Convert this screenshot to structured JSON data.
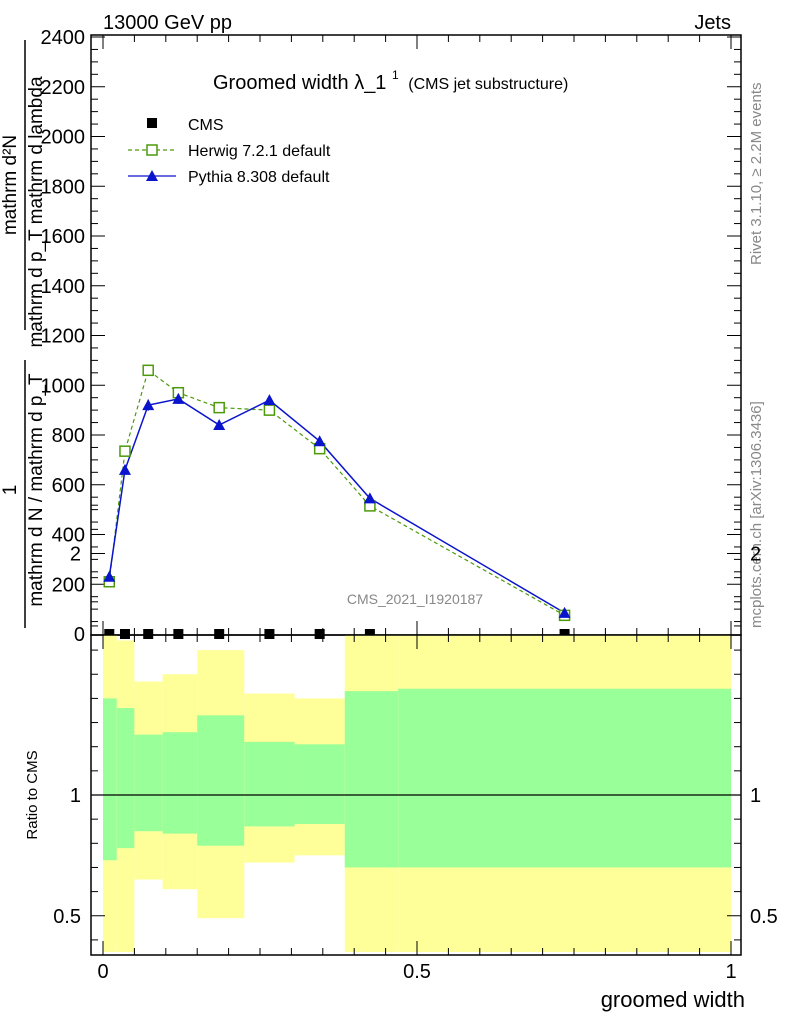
{
  "header": {
    "energy": "13000 GeV pp",
    "category": "Jets",
    "rivet": "Rivet 3.1.10, ≥ 2.2M events",
    "mcplots": "mcplots.cern.ch [arXiv:1306.3436]",
    "analysis_id": "CMS_2021_I1920187"
  },
  "chart_data": [
    {
      "type": "line",
      "title_main": "Groomed width",
      "title_sym": "λ_1",
      "title_sup": "1",
      "title_sub": "(CMS jet substructure)",
      "ylabel_top": "mathrm d²N",
      "ylabel_top2": "mathrm d p_T mathrm d lambda",
      "ylabel_one": "1",
      "ylabel_bottom": "mathrm d N / mathrm d p_T",
      "xlim": [
        0,
        1
      ],
      "ylim": [
        0,
        2400
      ],
      "yticks": [
        200,
        400,
        600,
        800,
        1000,
        1200,
        1400,
        1600,
        1800,
        2000,
        2200,
        2400
      ],
      "ytick_labels": [
        "200",
        "400",
        "600",
        "800",
        "1000",
        "1200",
        "1400",
        "1600",
        "1800",
        "2000",
        "2200",
        "2400"
      ],
      "ytick_zero": "0",
      "legend": [
        {
          "name": "CMS",
          "marker": "square-filled",
          "color": "#000000"
        },
        {
          "name": "Herwig 7.2.1 default",
          "marker": "square-open",
          "color": "#4c9a0a"
        },
        {
          "name": "Pythia 8.308 default",
          "marker": "triangle",
          "color": "#0a14cc"
        }
      ],
      "series": [
        {
          "name": "CMS",
          "x": [
            0.01,
            0.035,
            0.072,
            0.12,
            0.185,
            0.265,
            0.345,
            0.425,
            0.735
          ],
          "y": [
            0,
            0,
            0,
            0,
            0,
            0,
            0,
            0,
            0
          ]
        },
        {
          "name": "Herwig 7.2.1 default",
          "x": [
            0.01,
            0.035,
            0.072,
            0.12,
            0.185,
            0.265,
            0.345,
            0.425,
            0.735
          ],
          "y": [
            210,
            735,
            1060,
            970,
            910,
            900,
            745,
            515,
            75
          ],
          "err": [
            14,
            18,
            20,
            14,
            12,
            14,
            12,
            10,
            6
          ]
        },
        {
          "name": "Pythia 8.308 default",
          "x": [
            0.01,
            0.035,
            0.072,
            0.12,
            0.185,
            0.265,
            0.345,
            0.425,
            0.735
          ],
          "y": [
            230,
            660,
            920,
            945,
            840,
            940,
            775,
            545,
            85
          ],
          "err": [
            16,
            18,
            22,
            20,
            12,
            18,
            14,
            10,
            6
          ]
        }
      ]
    },
    {
      "type": "area",
      "ylabel": "Ratio to CMS",
      "xlabel": "groomed width",
      "xlim": [
        0,
        1
      ],
      "ylim": [
        0.35,
        2.3
      ],
      "yticks": [
        0.5,
        1,
        2
      ],
      "ytick_labels": [
        "0.5",
        "1",
        "2"
      ],
      "xticks": [
        0,
        0.5,
        1
      ],
      "xtick_labels": [
        "0",
        "0.5",
        "1"
      ],
      "colors": {
        "stat": "#99ff99",
        "syst": "#ffff99"
      },
      "bins": [
        {
          "lo": 0.0,
          "hi": 0.022,
          "stat": [
            0.73,
            1.4
          ],
          "syst": [
            0.35,
            1.71
          ]
        },
        {
          "lo": 0.022,
          "hi": 0.05,
          "stat": [
            0.78,
            1.36
          ],
          "syst": [
            0.35,
            1.64
          ]
        },
        {
          "lo": 0.05,
          "hi": 0.095,
          "stat": [
            0.85,
            1.25
          ],
          "syst": [
            0.65,
            1.47
          ]
        },
        {
          "lo": 0.095,
          "hi": 0.15,
          "stat": [
            0.84,
            1.26
          ],
          "syst": [
            0.61,
            1.5
          ]
        },
        {
          "lo": 0.15,
          "hi": 0.225,
          "stat": [
            0.79,
            1.33
          ],
          "syst": [
            0.49,
            1.6
          ]
        },
        {
          "lo": 0.225,
          "hi": 0.305,
          "stat": [
            0.87,
            1.22
          ],
          "syst": [
            0.72,
            1.42
          ]
        },
        {
          "lo": 0.305,
          "hi": 0.385,
          "stat": [
            0.88,
            1.21
          ],
          "syst": [
            0.75,
            1.4
          ]
        },
        {
          "lo": 0.385,
          "hi": 0.47,
          "stat": [
            0.7,
            1.43
          ],
          "syst": [
            0.35,
            1.76
          ]
        },
        {
          "lo": 0.47,
          "hi": 1.0,
          "stat": [
            0.7,
            1.44
          ],
          "syst": [
            0.35,
            1.77
          ]
        }
      ],
      "reference": 1.0
    }
  ]
}
